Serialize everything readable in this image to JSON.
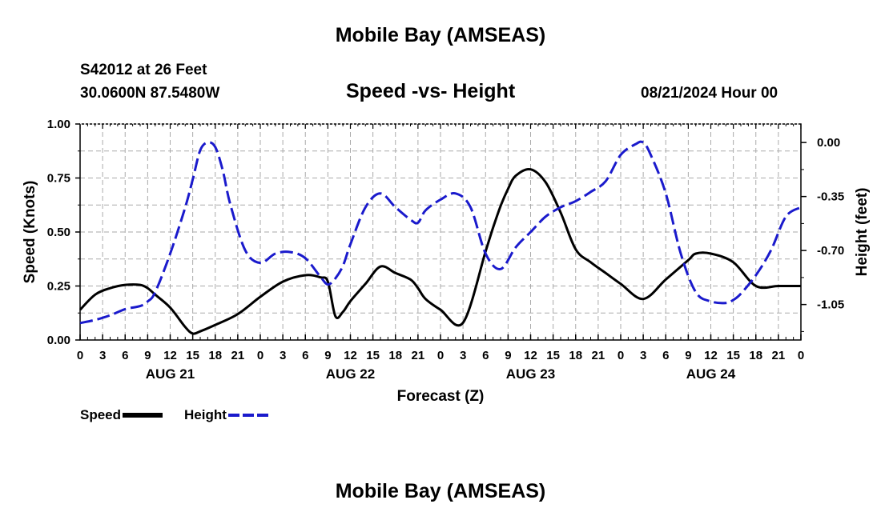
{
  "header": {
    "title": "Mobile Bay (AMSEAS)",
    "station": "S42012 at 26 Feet",
    "coords": "30.0600N  87.5480W",
    "subtitle": "Speed -vs- Height",
    "datetime": "08/21/2024 Hour 00",
    "footer_title": "Mobile Bay (AMSEAS)"
  },
  "colors": {
    "speed": "#000000",
    "height": "#1a1acc",
    "grid": "#aaaaaa"
  },
  "chart_data": {
    "type": "line",
    "title": "Speed -vs- Height",
    "xlabel": "Forecast (Z)",
    "ylabel": "Speed (Knots)",
    "y2label": "Height (feet)",
    "x_range": [
      0,
      96
    ],
    "ylim": [
      0,
      1.0
    ],
    "y2lim": [
      -1.28,
      0.12
    ],
    "yticks": [
      0,
      0.25,
      0.5,
      0.75,
      1.0
    ],
    "yticklabels": [
      "0.00",
      "0.25",
      "0.50",
      "0.75",
      "1.00"
    ],
    "y2ticks": [
      0,
      -0.35,
      -0.7,
      -1.05
    ],
    "y2ticklabels": [
      "0.00",
      "-0.35",
      "-0.70",
      "-1.05"
    ],
    "xtick_step": 3,
    "xticklabels": [
      "0",
      "3",
      "6",
      "9",
      "12",
      "15",
      "18",
      "21",
      "0",
      "3",
      "6",
      "9",
      "12",
      "15",
      "18",
      "21",
      "0",
      "3",
      "6",
      "9",
      "12",
      "15",
      "18",
      "21",
      "0",
      "3",
      "6",
      "9",
      "12",
      "15",
      "18",
      "21",
      "0"
    ],
    "day_labels": [
      {
        "x": 12,
        "label": "AUG 21"
      },
      {
        "x": 36,
        "label": "AUG 22"
      },
      {
        "x": 60,
        "label": "AUG 23"
      },
      {
        "x": 84,
        "label": "AUG 24"
      }
    ],
    "grid": true,
    "legend_position": "bottom-left",
    "series": [
      {
        "name": "Speed",
        "axis": "left",
        "style": "solid",
        "x": [
          0,
          2,
          4,
          6,
          8,
          9,
          10,
          12,
          14,
          15,
          16,
          18,
          21,
          24,
          27,
          30,
          32,
          33,
          34,
          35,
          36,
          38,
          40,
          42,
          44,
          45,
          46,
          48,
          51,
          54,
          55,
          56,
          57,
          58,
          60,
          62,
          64,
          66,
          68,
          70,
          72,
          75,
          78,
          81,
          82,
          84,
          87,
          90,
          93,
          96
        ],
        "y": [
          0.14,
          0.21,
          0.24,
          0.255,
          0.255,
          0.24,
          0.21,
          0.15,
          0.06,
          0.03,
          0.04,
          0.07,
          0.12,
          0.2,
          0.27,
          0.3,
          0.29,
          0.27,
          0.11,
          0.13,
          0.18,
          0.26,
          0.34,
          0.31,
          0.28,
          0.24,
          0.19,
          0.14,
          0.08,
          0.41,
          0.52,
          0.62,
          0.7,
          0.76,
          0.79,
          0.73,
          0.59,
          0.42,
          0.36,
          0.31,
          0.26,
          0.19,
          0.28,
          0.37,
          0.4,
          0.4,
          0.36,
          0.25,
          0.25,
          0.25
        ]
      },
      {
        "name": "Height",
        "axis": "right",
        "style": "dashed",
        "x": [
          0,
          2,
          4,
          6,
          8,
          9,
          10,
          12,
          14,
          15,
          16,
          17,
          18,
          19,
          20,
          22,
          24,
          26,
          28,
          30,
          32,
          33,
          34,
          35,
          36,
          38,
          40,
          42,
          44,
          45,
          46,
          48,
          50,
          52,
          54,
          56,
          58,
          60,
          62,
          64,
          66,
          68,
          70,
          72,
          74,
          75,
          76,
          78,
          80,
          82,
          84,
          86,
          87,
          88,
          90,
          92,
          94,
          96
        ],
        "y": [
          -1.17,
          -1.15,
          -1.12,
          -1.08,
          -1.06,
          -1.03,
          -0.97,
          -0.72,
          -0.42,
          -0.24,
          -0.05,
          0.0,
          -0.03,
          -0.18,
          -0.4,
          -0.7,
          -0.78,
          -0.72,
          -0.71,
          -0.75,
          -0.87,
          -0.92,
          -0.88,
          -0.8,
          -0.66,
          -0.42,
          -0.33,
          -0.42,
          -0.5,
          -0.52,
          -0.44,
          -0.37,
          -0.33,
          -0.42,
          -0.72,
          -0.82,
          -0.68,
          -0.58,
          -0.48,
          -0.42,
          -0.38,
          -0.32,
          -0.25,
          -0.08,
          -0.01,
          0.0,
          -0.08,
          -0.33,
          -0.72,
          -0.97,
          -1.03,
          -1.04,
          -1.02,
          -0.98,
          -0.86,
          -0.7,
          -0.48,
          -0.42
        ]
      }
    ]
  }
}
